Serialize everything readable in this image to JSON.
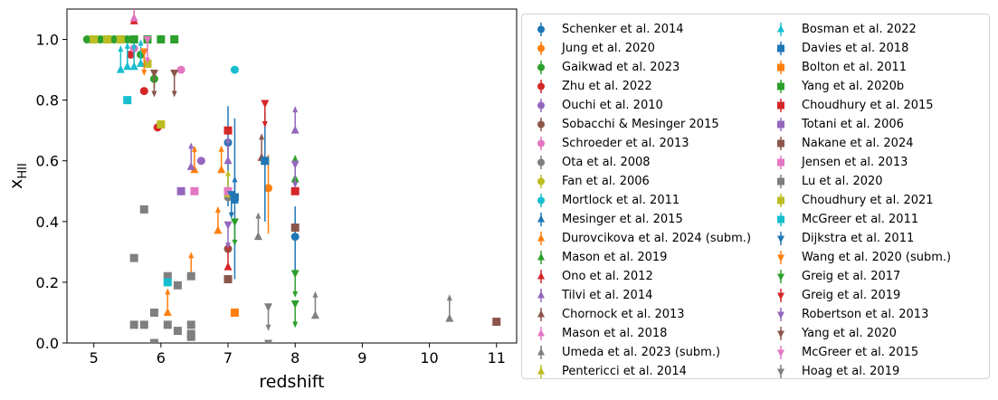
{
  "chart_data": {
    "type": "scatter",
    "xlabel": "redshift",
    "ylabel": "x_HII",
    "xlim": [
      4.6,
      11.3
    ],
    "ylim": [
      0.0,
      1.1
    ],
    "xticks": [
      5,
      6,
      7,
      8,
      9,
      10,
      11
    ],
    "yticks": [
      0.0,
      0.2,
      0.4,
      0.6,
      0.8,
      1.0
    ],
    "ytick_labels": [
      "0.0",
      "0.2",
      "0.4",
      "0.6",
      "0.8",
      "1.0"
    ],
    "grid": false,
    "legend_placement": "right",
    "series": [
      {
        "name": "Schenker et al. 2014",
        "color": "#1f77b4",
        "marker": "circle",
        "points": [
          {
            "x": 7.0,
            "y": 0.66,
            "lo": 0.45,
            "hi": 0.78
          },
          {
            "x": 8.0,
            "y": 0.35,
            "lo": 0.23,
            "hi": 0.45
          }
        ]
      },
      {
        "name": "Jung et al. 2020",
        "color": "#ff7f0e",
        "marker": "circle",
        "points": [
          {
            "x": 7.6,
            "y": 0.51,
            "lo": 0.36,
            "hi": 0.62
          }
        ]
      },
      {
        "name": "Gaikwad et al. 2023",
        "color": "#2ca02c",
        "marker": "circle",
        "points": [
          {
            "x": 4.9,
            "y": 1.0
          },
          {
            "x": 5.1,
            "y": 1.0
          },
          {
            "x": 5.3,
            "y": 1.0
          },
          {
            "x": 5.5,
            "y": 1.0
          },
          {
            "x": 5.7,
            "y": 0.95
          },
          {
            "x": 5.9,
            "y": 0.87,
            "lo": 0.84,
            "hi": 0.9
          }
        ]
      },
      {
        "name": "Zhu et al. 2022",
        "color": "#d62728",
        "marker": "circle",
        "points": [
          {
            "x": 5.55,
            "y": 0.95
          },
          {
            "x": 5.75,
            "y": 0.83
          },
          {
            "x": 5.95,
            "y": 0.71
          }
        ]
      },
      {
        "name": "Ouchi et al. 2010",
        "color": "#9467bd",
        "marker": "circle",
        "points": [
          {
            "x": 6.6,
            "y": 0.6
          }
        ]
      },
      {
        "name": "Sobacchi & Mesinger 2015",
        "color": "#8c564b",
        "marker": "circle",
        "points": [
          {
            "x": 7.0,
            "y": 0.31
          }
        ]
      },
      {
        "name": "Schroeder et al. 2013",
        "color": "#e377c2",
        "marker": "circle",
        "points": [
          {
            "x": 5.6,
            "y": 0.97
          },
          {
            "x": 6.3,
            "y": 0.9
          }
        ]
      },
      {
        "name": "Ota et al. 2008",
        "color": "#7f7f7f",
        "marker": "circle",
        "points": [
          {
            "x": 7.0,
            "y": 0.48
          }
        ]
      },
      {
        "name": "Fan et al. 2006",
        "color": "#bcbd22",
        "marker": "circle",
        "points": [
          {
            "x": 5.8,
            "y": 0.92
          },
          {
            "x": 6.0,
            "y": 0.72
          }
        ]
      },
      {
        "name": "Mortlock et al. 2011",
        "color": "#17becf",
        "marker": "circle",
        "points": [
          {
            "x": 7.1,
            "y": 0.9
          }
        ]
      },
      {
        "name": "Mesinger et al. 2015",
        "color": "#1f77b4",
        "marker": "triangle-up",
        "points": [
          {
            "x": 7.1,
            "y": 0.47
          }
        ]
      },
      {
        "name": "Durovcikova et al. 2024 (subm.)",
        "color": "#ff7f0e",
        "marker": "triangle-up",
        "points": [
          {
            "x": 6.1,
            "y": 0.1
          },
          {
            "x": 6.45,
            "y": 0.22
          },
          {
            "x": 6.5,
            "y": 0.57
          },
          {
            "x": 6.85,
            "y": 0.37
          },
          {
            "x": 6.9,
            "y": 0.57
          }
        ]
      },
      {
        "name": "Mason et al. 2019",
        "color": "#2ca02c",
        "marker": "triangle-up",
        "points": [
          {
            "x": 8.0,
            "y": 0.54
          }
        ]
      },
      {
        "name": "Ono et al. 2012",
        "color": "#d62728",
        "marker": "triangle-up",
        "points": [
          {
            "x": 5.6,
            "y": 1.06
          },
          {
            "x": 7.0,
            "y": 0.25
          }
        ]
      },
      {
        "name": "Tilvi et al. 2014",
        "color": "#9467bd",
        "marker": "triangle-up",
        "points": [
          {
            "x": 6.45,
            "y": 0.58
          },
          {
            "x": 7.0,
            "y": 0.6
          },
          {
            "x": 8.0,
            "y": 0.7
          }
        ]
      },
      {
        "name": "Chornock et al. 2013",
        "color": "#8c564b",
        "marker": "triangle-up",
        "points": [
          {
            "x": 7.5,
            "y": 0.61
          }
        ]
      },
      {
        "name": "Mason et al. 2018",
        "color": "#e377c2",
        "marker": "triangle-up",
        "points": [
          {
            "x": 5.6,
            "y": 1.07
          }
        ]
      },
      {
        "name": "Umeda et al. 2023 (subm.)",
        "color": "#7f7f7f",
        "marker": "triangle-up",
        "points": [
          {
            "x": 7.45,
            "y": 0.35
          },
          {
            "x": 8.3,
            "y": 0.09
          },
          {
            "x": 10.3,
            "y": 0.08
          }
        ]
      },
      {
        "name": "Pentericci et al. 2014",
        "color": "#bcbd22",
        "marker": "triangle-up",
        "points": [
          {
            "x": 7.0,
            "y": 0.49
          }
        ]
      },
      {
        "name": "Bosman et al. 2022",
        "color": "#17becf",
        "marker": "triangle-up",
        "points": [
          {
            "x": 5.4,
            "y": 0.9
          },
          {
            "x": 5.5,
            "y": 0.91
          },
          {
            "x": 5.6,
            "y": 0.91
          },
          {
            "x": 5.7,
            "y": 0.92
          }
        ]
      },
      {
        "name": "Davies et al. 2018",
        "color": "#1f77b4",
        "marker": "square",
        "points": [
          {
            "x": 7.1,
            "y": 0.48,
            "lo": 0.21,
            "hi": 0.74
          },
          {
            "x": 7.55,
            "y": 0.6,
            "lo": 0.4,
            "hi": 0.76
          }
        ]
      },
      {
        "name": "Bolton et al. 2011",
        "color": "#ff7f0e",
        "marker": "square",
        "points": [
          {
            "x": 7.1,
            "y": 0.1
          }
        ]
      },
      {
        "name": "Yang et al. 2020b",
        "color": "#2ca02c",
        "marker": "square",
        "points": [
          {
            "x": 5.0,
            "y": 1.0
          },
          {
            "x": 5.2,
            "y": 1.0
          },
          {
            "x": 5.4,
            "y": 1.0
          },
          {
            "x": 5.6,
            "y": 1.0
          },
          {
            "x": 5.8,
            "y": 1.0
          },
          {
            "x": 6.0,
            "y": 1.0
          },
          {
            "x": 6.2,
            "y": 1.0
          }
        ]
      },
      {
        "name": "Choudhury et al. 2015",
        "color": "#d62728",
        "marker": "square",
        "points": [
          {
            "x": 7.0,
            "y": 0.7
          },
          {
            "x": 8.0,
            "y": 0.5
          }
        ]
      },
      {
        "name": "Totani et al. 2006",
        "color": "#9467bd",
        "marker": "square",
        "points": [
          {
            "x": 6.3,
            "y": 0.5
          }
        ]
      },
      {
        "name": "Nakane et al. 2024",
        "color": "#8c564b",
        "marker": "square",
        "points": [
          {
            "x": 7.0,
            "y": 0.21
          },
          {
            "x": 8.0,
            "y": 0.38
          },
          {
            "x": 11.0,
            "y": 0.07
          }
        ]
      },
      {
        "name": "Jensen et al. 2013",
        "color": "#e377c2",
        "marker": "square",
        "points": [
          {
            "x": 6.5,
            "y": 0.5
          },
          {
            "x": 7.0,
            "y": 0.5
          }
        ]
      },
      {
        "name": "Lu et al. 2020",
        "color": "#7f7f7f",
        "marker": "square",
        "points": [
          {
            "x": 5.6,
            "y": 0.28
          },
          {
            "x": 5.6,
            "y": 0.06
          },
          {
            "x": 5.75,
            "y": 0.44
          },
          {
            "x": 5.75,
            "y": 0.06
          },
          {
            "x": 5.9,
            "y": 0.1
          },
          {
            "x": 5.9,
            "y": 0.0
          },
          {
            "x": 6.1,
            "y": 0.22
          },
          {
            "x": 6.1,
            "y": 0.06
          },
          {
            "x": 6.25,
            "y": 0.19
          },
          {
            "x": 6.25,
            "y": 0.04
          },
          {
            "x": 6.45,
            "y": 0.22
          },
          {
            "x": 6.45,
            "y": 0.06
          },
          {
            "x": 6.45,
            "y": 0.03
          },
          {
            "x": 6.45,
            "y": 0.02
          }
        ]
      },
      {
        "name": "Choudhury et al. 2021",
        "color": "#bcbd22",
        "marker": "square",
        "points": [
          {
            "x": 5.0,
            "y": 1.0
          },
          {
            "x": 5.2,
            "y": 1.0
          },
          {
            "x": 5.4,
            "y": 1.0
          },
          {
            "x": 5.8,
            "y": 0.92
          },
          {
            "x": 6.0,
            "y": 0.72
          }
        ]
      },
      {
        "name": "McGreer et al. 2011",
        "color": "#17becf",
        "marker": "square",
        "points": [
          {
            "x": 5.5,
            "y": 0.8
          },
          {
            "x": 6.1,
            "y": 0.2
          }
        ]
      },
      {
        "name": "Dijkstra et al. 2011",
        "color": "#1f77b4",
        "marker": "triangle-down",
        "points": [
          {
            "x": 7.05,
            "y": 0.49
          }
        ]
      },
      {
        "name": "Wang et al. 2020 (subm.)",
        "color": "#ff7f0e",
        "marker": "triangle-down",
        "points": [
          {
            "x": 5.75,
            "y": 0.96
          }
        ]
      },
      {
        "name": "Greig et al. 2017",
        "color": "#2ca02c",
        "marker": "triangle-down",
        "points": [
          {
            "x": 7.1,
            "y": 0.4
          },
          {
            "x": 8.0,
            "y": 0.23
          },
          {
            "x": 8.0,
            "y": 0.13
          }
        ]
      },
      {
        "name": "Greig et al. 2019",
        "color": "#d62728",
        "marker": "triangle-down",
        "points": [
          {
            "x": 7.55,
            "y": 0.79
          }
        ]
      },
      {
        "name": "Robertson et al. 2013",
        "color": "#9467bd",
        "marker": "triangle-down",
        "points": [
          {
            "x": 7.0,
            "y": 0.39
          },
          {
            "x": 8.0,
            "y": 0.59
          }
        ]
      },
      {
        "name": "Yang et al. 2020",
        "color": "#8c564b",
        "marker": "triangle-down",
        "points": [
          {
            "x": 5.9,
            "y": 0.89
          },
          {
            "x": 6.2,
            "y": 0.89
          }
        ]
      },
      {
        "name": "McGreer et al. 2015",
        "color": "#e377c2",
        "marker": "triangle-down",
        "points": [
          {
            "x": 5.8,
            "y": 1.0
          }
        ]
      },
      {
        "name": "Hoag et al. 2019",
        "color": "#7f7f7f",
        "marker": "triangle-down",
        "points": [
          {
            "x": 7.6,
            "y": 0.12
          },
          {
            "x": 7.6,
            "y": 0.0
          }
        ]
      }
    ]
  }
}
